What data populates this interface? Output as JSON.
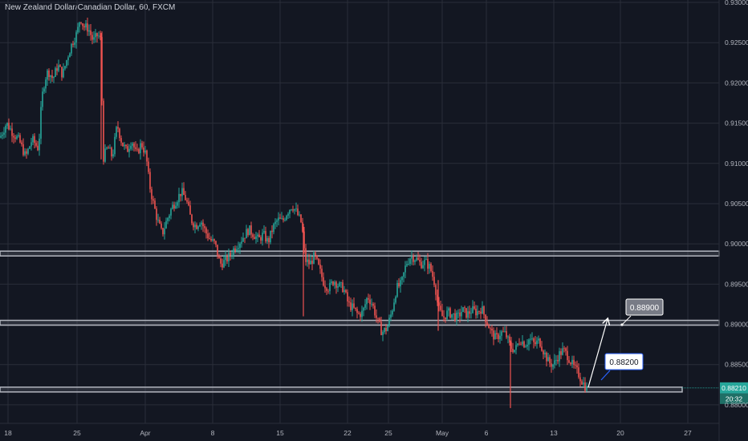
{
  "header": {
    "title": "New Zealand Dollar/Canadian Dollar, 60, FXCM"
  },
  "colors": {
    "background": "#131722",
    "up": "#26a69a",
    "down": "#ef5350",
    "grid": "#2a2e39",
    "level_band": "#b2b5be",
    "price_badge": "#26a69a"
  },
  "chart_data": {
    "type": "candlestick",
    "y_axis": {
      "ticks": [
        "0.93000",
        "0.92500",
        "0.92000",
        "0.91500",
        "0.91000",
        "0.90500",
        "0.90000",
        "0.89500",
        "0.89000",
        "0.88500",
        "0.88000"
      ],
      "ylim": [
        0.8777,
        0.9303
      ]
    },
    "x_axis": {
      "ticks": [
        "18",
        "25",
        "Apr",
        "8",
        "15",
        "22",
        "25",
        "May",
        "6",
        "13",
        "20",
        "27"
      ]
    },
    "grid": true,
    "horizontal_levels": [
      0.8988,
      0.8902,
      0.8819
    ],
    "annotations": [
      {
        "label": "0.88900",
        "type": "target"
      },
      {
        "label": "0.88200",
        "type": "support"
      }
    ],
    "last_price": "0.88210",
    "countdown": "20:32",
    "path": [
      {
        "x": 0,
        "y": 0.9132
      },
      {
        "x": 8,
        "y": 0.915
      },
      {
        "x": 16,
        "y": 0.9138
      },
      {
        "x": 24,
        "y": 0.9128
      },
      {
        "x": 32,
        "y": 0.9108
      },
      {
        "x": 40,
        "y": 0.913
      },
      {
        "x": 48,
        "y": 0.9118
      },
      {
        "x": 52,
        "y": 0.918
      },
      {
        "x": 56,
        "y": 0.9205
      },
      {
        "x": 60,
        "y": 0.9215
      },
      {
        "x": 66,
        "y": 0.9205
      },
      {
        "x": 72,
        "y": 0.9222
      },
      {
        "x": 78,
        "y": 0.921
      },
      {
        "x": 84,
        "y": 0.9232
      },
      {
        "x": 90,
        "y": 0.925
      },
      {
        "x": 96,
        "y": 0.9262
      },
      {
        "x": 100,
        "y": 0.9282
      },
      {
        "x": 104,
        "y": 0.927
      },
      {
        "x": 110,
        "y": 0.9268
      },
      {
        "x": 116,
        "y": 0.9252
      },
      {
        "x": 122,
        "y": 0.926
      },
      {
        "x": 126,
        "y": 0.9252
      },
      {
        "x": 128,
        "y": 0.9105
      },
      {
        "x": 134,
        "y": 0.912
      },
      {
        "x": 140,
        "y": 0.9108
      },
      {
        "x": 146,
        "y": 0.9148
      },
      {
        "x": 152,
        "y": 0.9125
      },
      {
        "x": 158,
        "y": 0.9115
      },
      {
        "x": 164,
        "y": 0.913
      },
      {
        "x": 170,
        "y": 0.911
      },
      {
        "x": 176,
        "y": 0.9125
      },
      {
        "x": 182,
        "y": 0.911
      },
      {
        "x": 186,
        "y": 0.9075
      },
      {
        "x": 190,
        "y": 0.9055
      },
      {
        "x": 196,
        "y": 0.903
      },
      {
        "x": 202,
        "y": 0.9012
      },
      {
        "x": 208,
        "y": 0.903
      },
      {
        "x": 214,
        "y": 0.9045
      },
      {
        "x": 220,
        "y": 0.9055
      },
      {
        "x": 226,
        "y": 0.9065
      },
      {
        "x": 232,
        "y": 0.9055
      },
      {
        "x": 238,
        "y": 0.903
      },
      {
        "x": 244,
        "y": 0.9022
      },
      {
        "x": 250,
        "y": 0.903
      },
      {
        "x": 256,
        "y": 0.9015
      },
      {
        "x": 262,
        "y": 0.9005
      },
      {
        "x": 268,
        "y": 0.9
      },
      {
        "x": 274,
        "y": 0.8975
      },
      {
        "x": 280,
        "y": 0.8978
      },
      {
        "x": 286,
        "y": 0.8985
      },
      {
        "x": 292,
        "y": 0.8995
      },
      {
        "x": 298,
        "y": 0.9002
      },
      {
        "x": 304,
        "y": 0.901
      },
      {
        "x": 310,
        "y": 0.9018
      },
      {
        "x": 316,
        "y": 0.9012
      },
      {
        "x": 322,
        "y": 0.9005
      },
      {
        "x": 328,
        "y": 0.9012
      },
      {
        "x": 334,
        "y": 0.9002
      },
      {
        "x": 340,
        "y": 0.902
      },
      {
        "x": 346,
        "y": 0.903
      },
      {
        "x": 352,
        "y": 0.9028
      },
      {
        "x": 358,
        "y": 0.904
      },
      {
        "x": 364,
        "y": 0.9048
      },
      {
        "x": 370,
        "y": 0.9038
      },
      {
        "x": 376,
        "y": 0.9025
      },
      {
        "x": 380,
        "y": 0.898
      },
      {
        "x": 386,
        "y": 0.8975
      },
      {
        "x": 392,
        "y": 0.8985
      },
      {
        "x": 398,
        "y": 0.8968
      },
      {
        "x": 404,
        "y": 0.895
      },
      {
        "x": 410,
        "y": 0.8945
      },
      {
        "x": 416,
        "y": 0.8955
      },
      {
        "x": 422,
        "y": 0.8948
      },
      {
        "x": 428,
        "y": 0.8945
      },
      {
        "x": 434,
        "y": 0.8925
      },
      {
        "x": 440,
        "y": 0.892
      },
      {
        "x": 446,
        "y": 0.8912
      },
      {
        "x": 452,
        "y": 0.8915
      },
      {
        "x": 458,
        "y": 0.8935
      },
      {
        "x": 464,
        "y": 0.8925
      },
      {
        "x": 470,
        "y": 0.8905
      },
      {
        "x": 476,
        "y": 0.889
      },
      {
        "x": 482,
        "y": 0.8895
      },
      {
        "x": 488,
        "y": 0.8915
      },
      {
        "x": 494,
        "y": 0.8945
      },
      {
        "x": 500,
        "y": 0.895
      },
      {
        "x": 506,
        "y": 0.8975
      },
      {
        "x": 512,
        "y": 0.8985
      },
      {
        "x": 518,
        "y": 0.8982
      },
      {
        "x": 524,
        "y": 0.8975
      },
      {
        "x": 530,
        "y": 0.8978
      },
      {
        "x": 536,
        "y": 0.897
      },
      {
        "x": 542,
        "y": 0.895
      },
      {
        "x": 546,
        "y": 0.892
      },
      {
        "x": 552,
        "y": 0.8908
      },
      {
        "x": 558,
        "y": 0.8915
      },
      {
        "x": 564,
        "y": 0.8912
      },
      {
        "x": 570,
        "y": 0.8908
      },
      {
        "x": 576,
        "y": 0.8918
      },
      {
        "x": 582,
        "y": 0.8912
      },
      {
        "x": 588,
        "y": 0.8918
      },
      {
        "x": 594,
        "y": 0.8915
      },
      {
        "x": 600,
        "y": 0.892
      },
      {
        "x": 606,
        "y": 0.8905
      },
      {
        "x": 612,
        "y": 0.889
      },
      {
        "x": 618,
        "y": 0.8882
      },
      {
        "x": 624,
        "y": 0.889
      },
      {
        "x": 630,
        "y": 0.8888
      },
      {
        "x": 636,
        "y": 0.8872
      },
      {
        "x": 642,
        "y": 0.8868
      },
      {
        "x": 648,
        "y": 0.8882
      },
      {
        "x": 654,
        "y": 0.8875
      },
      {
        "x": 660,
        "y": 0.8882
      },
      {
        "x": 666,
        "y": 0.8875
      },
      {
        "x": 672,
        "y": 0.888
      },
      {
        "x": 678,
        "y": 0.8865
      },
      {
        "x": 684,
        "y": 0.8852
      },
      {
        "x": 690,
        "y": 0.885
      },
      {
        "x": 696,
        "y": 0.8862
      },
      {
        "x": 702,
        "y": 0.8868
      },
      {
        "x": 708,
        "y": 0.886
      },
      {
        "x": 714,
        "y": 0.8848
      },
      {
        "x": 720,
        "y": 0.884
      },
      {
        "x": 726,
        "y": 0.8828
      },
      {
        "x": 731,
        "y": 0.882
      }
    ],
    "spikes": [
      {
        "x": 126,
        "hi": 0.9262,
        "lo": 0.9105
      },
      {
        "x": 378,
        "hi": 0.9025,
        "lo": 0.891
      },
      {
        "x": 636,
        "hi": 0.888,
        "lo": 0.8796
      },
      {
        "x": 546,
        "hi": 0.8955,
        "lo": 0.8892
      }
    ]
  }
}
